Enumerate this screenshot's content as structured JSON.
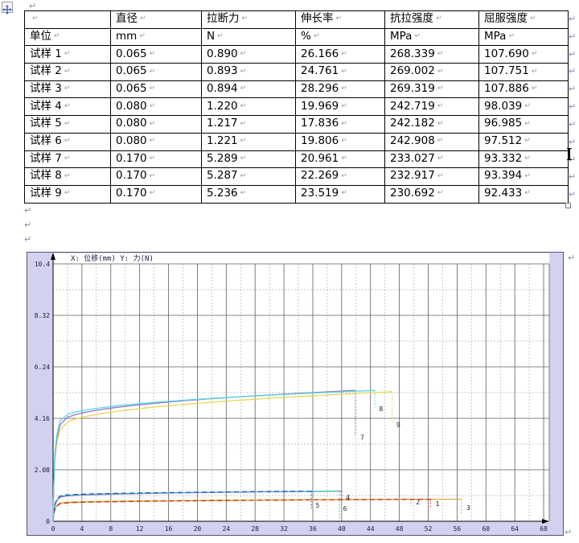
{
  "page": {
    "bg": "#ffffff",
    "pilcrow": "↵"
  },
  "table": {
    "header": [
      "",
      "直径",
      "拉断力",
      "伸长率",
      "抗拉强度",
      "屈服强度"
    ],
    "rows": [
      [
        "单位",
        "mm",
        "N",
        "%",
        "MPa",
        "MPa"
      ],
      [
        "试样 1",
        "0.065",
        "0.890",
        "26.166",
        "268.339",
        "107.690"
      ],
      [
        "试样 2",
        "0.065",
        "0.893",
        "24.761",
        "269.002",
        "107.751"
      ],
      [
        "试样 3",
        "0.065",
        "0.894",
        "28.296",
        "269.319",
        "107.886"
      ],
      [
        "试样 4",
        "0.080",
        "1.220",
        "19.969",
        "242.719",
        "98.039"
      ],
      [
        "试样 5",
        "0.080",
        "1.217",
        "17.836",
        "242.182",
        "96.985"
      ],
      [
        "试样 6",
        "0.080",
        "1.221",
        "19.806",
        "242.908",
        "97.512"
      ],
      [
        "试样 7",
        "0.170",
        "5.289",
        "20.961",
        "233.027",
        "93.332"
      ],
      [
        "试样 8",
        "0.170",
        "5.287",
        "22.269",
        "232.917",
        "93.394"
      ],
      [
        "试样 9",
        "0.170",
        "5.236",
        "23.519",
        "230.692",
        "92.433"
      ]
    ]
  },
  "chart_data": {
    "type": "line",
    "title": "X: 位移(mm)   Y: 力(N)",
    "xlabel": "位移(mm)",
    "ylabel": "力(N)",
    "xlim": [
      0,
      68
    ],
    "ylim": [
      0,
      10.4
    ],
    "x_major_step": 4,
    "x_minor_step": 2,
    "x_ticks": [
      0,
      4,
      8,
      12,
      16,
      20,
      24,
      28,
      32,
      36,
      40,
      44,
      48,
      52,
      56,
      60,
      64,
      68
    ],
    "y_ticks": [
      {
        "label": "10.4",
        "value": 10.4
      },
      {
        "label": "8.32",
        "value": 8.32
      },
      {
        "label": "6.24",
        "value": 6.24
      },
      {
        "label": "4.16",
        "value": 4.16
      },
      {
        "label": "2.08",
        "value": 2.08
      },
      {
        "label": "0",
        "value": 0
      }
    ],
    "y_minor": [
      1.04,
      3.12,
      5.2,
      7.28,
      9.36
    ],
    "grid": "major solid + minor dashed",
    "legend_position": "none",
    "bg": "#d2d2f0",
    "plot_bg": "#ffffff",
    "series": [
      {
        "name": "1",
        "sample": "试样 1",
        "color": "#cc3322",
        "dashed": true,
        "break_x": 52.3,
        "break_force": 0.89,
        "knee": 0.8,
        "drop_to": 0.5,
        "label_x": 53.0,
        "label_y": 0.62
      },
      {
        "name": "2",
        "sample": "试样 2",
        "color": "#a8bc38",
        "dashed": false,
        "break_x": 49.6,
        "break_force": 0.893,
        "knee": 0.83,
        "drop_to": 0.6,
        "label_x": 50.3,
        "label_y": 0.68
      },
      {
        "name": "3",
        "sample": "试样 3",
        "color": "#ddaa44",
        "dashed": false,
        "break_x": 56.6,
        "break_force": 0.894,
        "knee": 0.81,
        "drop_to": 0.25,
        "label_x": 57.3,
        "label_y": 0.45
      },
      {
        "name": "4",
        "sample": "试样 4",
        "color": "#cc44cc",
        "dashed": false,
        "break_x": 40.0,
        "break_force": 1.22,
        "knee": 0.8,
        "drop_to": 0.72,
        "label_x": 40.6,
        "label_y": 0.88
      },
      {
        "name": "5",
        "sample": "试样 5",
        "color": "#2a52c0",
        "dashed": true,
        "break_x": 35.8,
        "break_force": 1.217,
        "knee": 0.84,
        "drop_to": 0.52,
        "label_x": 36.4,
        "label_y": 0.55
      },
      {
        "name": "6",
        "sample": "试样 6",
        "color": "#35c8b8",
        "dashed": false,
        "break_x": 39.7,
        "break_force": 1.221,
        "knee": 0.82,
        "drop_to": 0.12,
        "label_x": 40.2,
        "label_y": 0.42
      },
      {
        "name": "7",
        "sample": "试样 7",
        "color": "#9a76bc",
        "dashed": false,
        "break_x": 41.9,
        "break_force": 5.289,
        "knee": 0.74,
        "drop_to": 3.45,
        "label_x": 42.6,
        "label_y": 3.3
      },
      {
        "name": "8",
        "sample": "试样 8",
        "color": "#58d6e8",
        "dashed": false,
        "break_x": 44.6,
        "break_force": 5.287,
        "knee": 0.77,
        "drop_to": 4.6,
        "label_x": 45.2,
        "label_y": 4.45
      },
      {
        "name": "9",
        "sample": "试样 9",
        "color": "#e6d64e",
        "dashed": false,
        "break_x": 47.0,
        "break_force": 5.236,
        "knee": 0.71,
        "drop_to": 3.95,
        "label_x": 47.6,
        "label_y": 3.8
      }
    ]
  }
}
